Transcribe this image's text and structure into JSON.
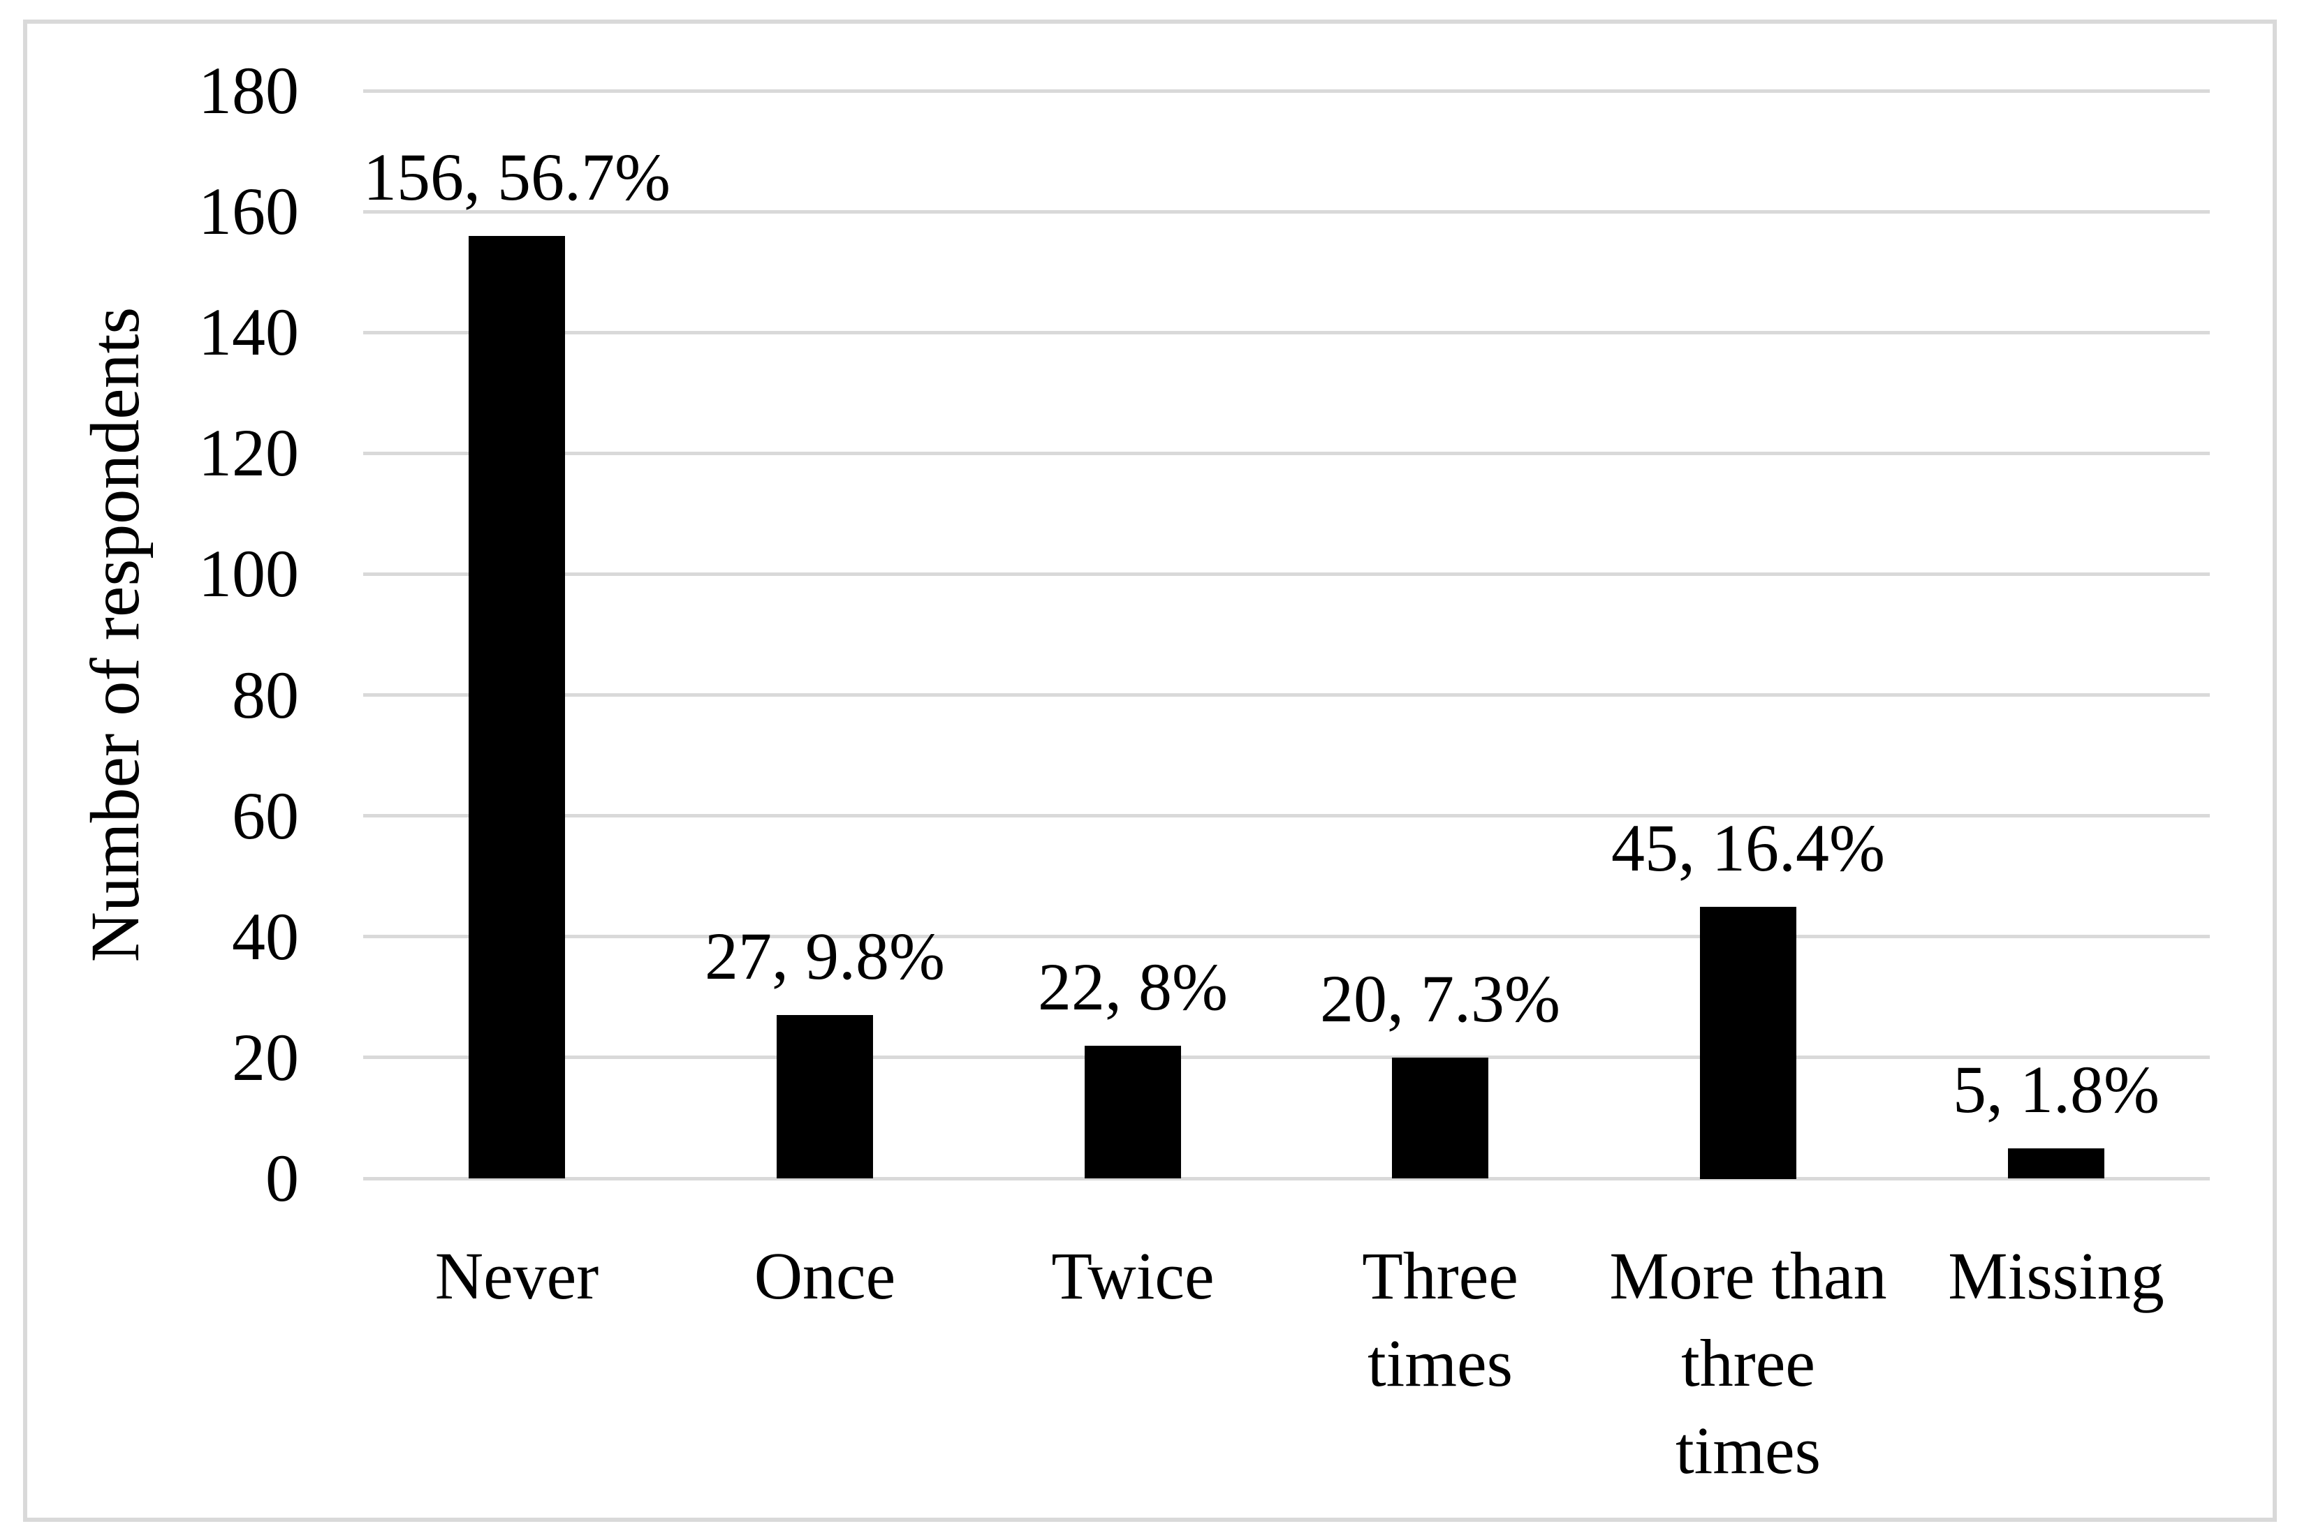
{
  "chart_data": {
    "type": "bar",
    "title": "",
    "ylabel": "Number of respondents",
    "xlabel": "",
    "categories": [
      "Never",
      "Once",
      "Twice",
      "Three times",
      "More than three times",
      "Missing"
    ],
    "category_label_lines": [
      [
        "Never"
      ],
      [
        "Once"
      ],
      [
        "Twice"
      ],
      [
        "Three",
        "times"
      ],
      [
        "More than",
        "three",
        "times"
      ],
      [
        "Missing"
      ]
    ],
    "values": [
      156,
      27,
      22,
      20,
      45,
      5
    ],
    "percentages": [
      56.7,
      9.8,
      8,
      7.3,
      16.4,
      1.8
    ],
    "data_labels": [
      "156, 56.7%",
      "27, 9.8%",
      "22, 8%",
      "20, 7.3%",
      "45, 16.4%",
      "5, 1.8%"
    ],
    "ylim": [
      0,
      180
    ],
    "yticks": [
      0,
      20,
      40,
      60,
      80,
      100,
      120,
      140,
      160,
      180
    ],
    "grid": true,
    "legend": false,
    "bar_color": "#000000",
    "gridline_color": "#d9d9d9",
    "border_color": "#d9d9d9",
    "text_color": "#000000",
    "background": "#ffffff"
  }
}
